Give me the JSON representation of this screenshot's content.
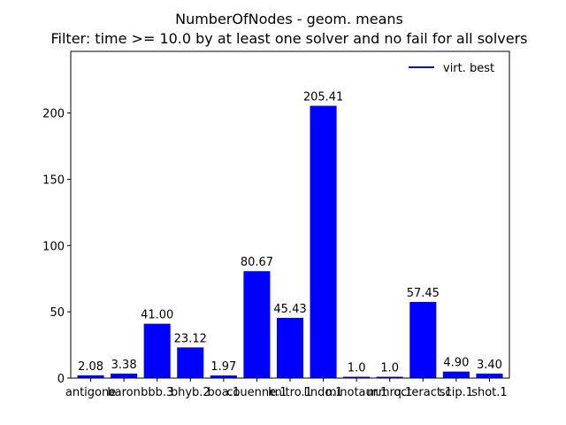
{
  "chart_data": {
    "type": "bar",
    "title": "NumberOfNodes - geom. means",
    "subtitle": "Filter: time >= 10.0 by at least one solver and no fail for all solvers",
    "xlabel": "",
    "ylabel": "",
    "categories": [
      "antigone",
      "baron",
      "bbb.3",
      "bhyb.2",
      "boa.1",
      "couenne.1",
      "knitro.1",
      "lindo.1",
      "minotaur.1",
      "mmrq.1",
      "octeract.1",
      "scip.1",
      "shot.1"
    ],
    "series": [
      {
        "values": [
          2.08,
          3.38,
          41.0,
          23.12,
          1.97,
          80.67,
          45.43,
          205.41,
          1.0,
          1.0,
          57.45,
          4.9,
          3.4
        ],
        "value_labels": [
          "2.08",
          "3.38",
          "41.00",
          "23.12",
          "1.97",
          "80.67",
          "45.43",
          "205.41",
          "1.0",
          "1.0",
          "57.45",
          "4.90",
          "3.40"
        ],
        "color": "#0000ff"
      }
    ],
    "ylim": [
      0,
      246.5
    ],
    "yticks": [
      0,
      50,
      100,
      150,
      200
    ],
    "legend": {
      "label": "virt. best",
      "placement": "top-right",
      "color": "#0000ff"
    },
    "grid": false
  }
}
